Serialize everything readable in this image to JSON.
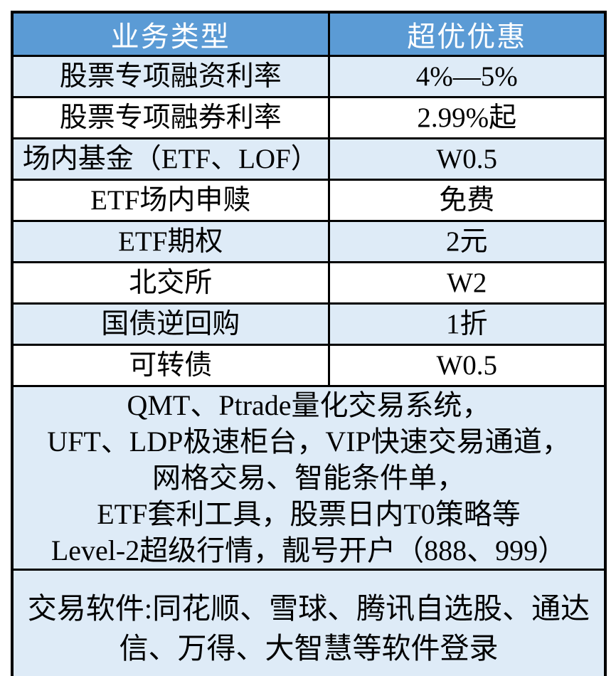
{
  "table": {
    "headers": [
      "业务类型",
      "超优优惠"
    ],
    "rows": [
      {
        "type": "股票专项融资利率",
        "discount": "4%—5%"
      },
      {
        "type": "股票专项融券利率",
        "discount": "2.99%起"
      },
      {
        "type": "场内基金（ETF、LOF）",
        "discount": "W0.5"
      },
      {
        "type": "ETF场内申赎",
        "discount": "免费"
      },
      {
        "type": "ETF期权",
        "discount": "2元"
      },
      {
        "type": "北交所",
        "discount": "W2"
      },
      {
        "type": "国债逆回购",
        "discount": "1折"
      },
      {
        "type": "可转债",
        "discount": "W0.5"
      }
    ],
    "features_lines": [
      "QMT、Ptrade量化交易系统，",
      "UFT、LDP极速柜台，VIP快速交易通道，",
      "网格交易、智能条件单，",
      "ETF套利工具，股票日内T0策略等",
      "Level-2超级行情，靓号开户（888、999）"
    ],
    "software_lines": [
      "交易软件:同花顺、雪球、腾讯自选股、通达",
      "信、万得、大智慧等软件登录"
    ]
  },
  "colors": {
    "header_bg": "#5B9BD5",
    "header_text": "#FFFFFF",
    "row_alt_bg": "#DEEBF7",
    "row_bg": "#FFFFFF",
    "border": "#000000",
    "text": "#000000"
  }
}
